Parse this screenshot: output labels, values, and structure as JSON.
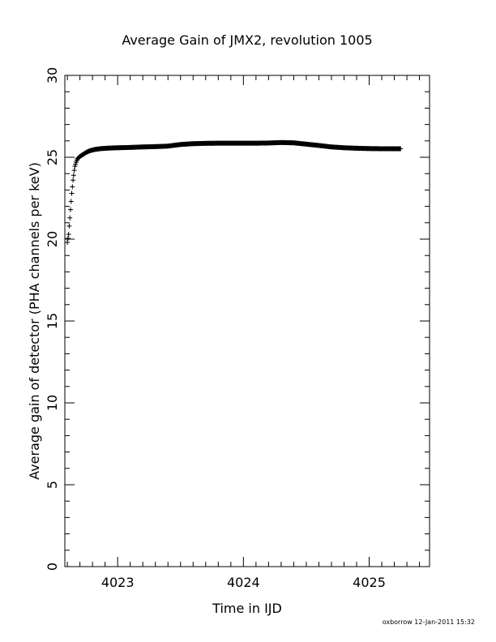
{
  "chart_data": {
    "type": "scatter",
    "marker": "plus",
    "title": "Average Gain of JMX2, revolution 1005",
    "xlabel": "Time in IJD",
    "ylabel": "Average gain of detector (PHA channels per keV)",
    "xlim": [
      4022.58,
      4025.48
    ],
    "ylim": [
      0,
      30
    ],
    "xticks": [
      4023,
      4024,
      4025
    ],
    "yticks": [
      0,
      5,
      10,
      15,
      20,
      25,
      30
    ],
    "xtick_labels": [
      "4023",
      "4024",
      "4025"
    ],
    "ytick_labels": [
      "0",
      "5",
      "10",
      "15",
      "20",
      "25",
      "30"
    ],
    "grid": false,
    "color": "#000000",
    "series": [
      {
        "points": [
          [
            4022.6,
            19.8
          ],
          [
            4022.61,
            20.3
          ],
          [
            4022.615,
            20.8
          ],
          [
            4022.62,
            21.3
          ],
          [
            4022.625,
            21.8
          ],
          [
            4022.63,
            22.3
          ],
          [
            4022.635,
            22.8
          ],
          [
            4022.64,
            23.2
          ],
          [
            4022.645,
            23.6
          ],
          [
            4022.65,
            23.9
          ],
          [
            4022.655,
            24.2
          ],
          [
            4022.66,
            24.45
          ],
          [
            4022.67,
            24.7
          ],
          [
            4022.68,
            24.9
          ],
          [
            4022.7,
            25.05
          ],
          [
            4022.72,
            25.15
          ],
          [
            4022.75,
            25.3
          ],
          [
            4022.78,
            25.4
          ],
          [
            4022.82,
            25.48
          ],
          [
            4022.87,
            25.53
          ],
          [
            4022.93,
            25.56
          ],
          [
            4023.0,
            25.58
          ],
          [
            4023.1,
            25.6
          ],
          [
            4023.2,
            25.63
          ],
          [
            4023.3,
            25.65
          ],
          [
            4023.4,
            25.68
          ],
          [
            4023.5,
            25.78
          ],
          [
            4023.6,
            25.83
          ],
          [
            4023.7,
            25.85
          ],
          [
            4023.8,
            25.86
          ],
          [
            4023.9,
            25.86
          ],
          [
            4024.0,
            25.86
          ],
          [
            4024.1,
            25.86
          ],
          [
            4024.2,
            25.87
          ],
          [
            4024.3,
            25.9
          ],
          [
            4024.4,
            25.88
          ],
          [
            4024.5,
            25.8
          ],
          [
            4024.6,
            25.72
          ],
          [
            4024.7,
            25.63
          ],
          [
            4024.8,
            25.58
          ],
          [
            4024.9,
            25.55
          ],
          [
            4025.0,
            25.53
          ],
          [
            4025.1,
            25.52
          ],
          [
            4025.2,
            25.52
          ],
          [
            4025.25,
            25.52
          ]
        ]
      }
    ]
  },
  "footer": {
    "signature": "oxborrow 12-Jan-2011 15:32"
  }
}
